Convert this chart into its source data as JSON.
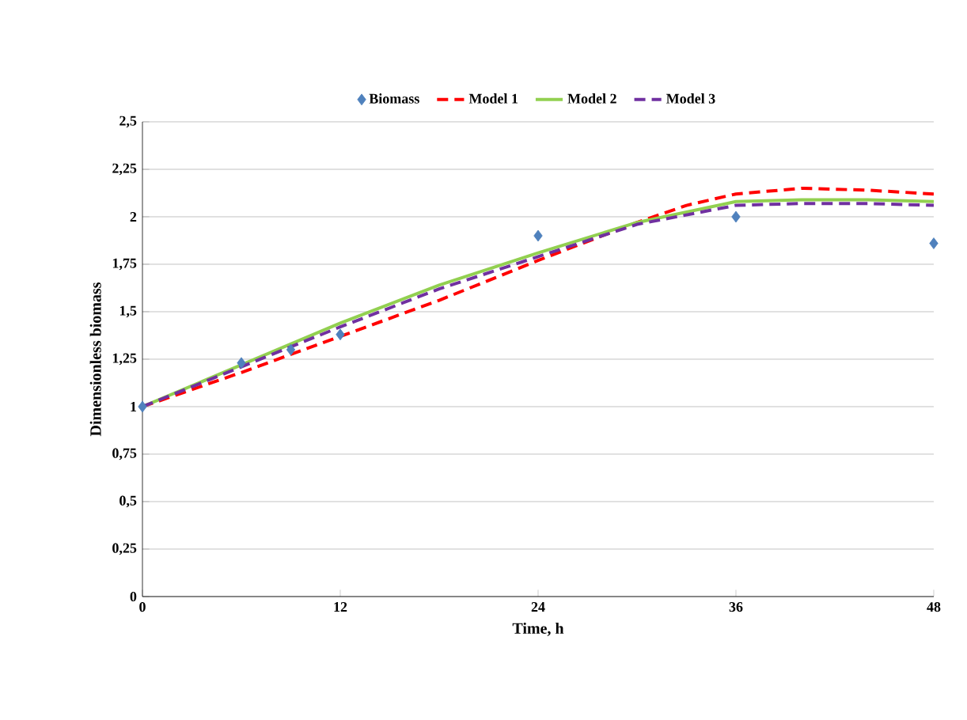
{
  "chart_data": {
    "type": "line",
    "xlabel": "Time, h",
    "ylabel": "Dimensionless biomass",
    "xlim": [
      0,
      48
    ],
    "xticks": [
      0,
      12,
      24,
      36,
      48
    ],
    "ylim": [
      0,
      2.5
    ],
    "yticks": [
      {
        "value": 0,
        "label": "0"
      },
      {
        "value": 0.25,
        "label": "0,25"
      },
      {
        "value": 0.5,
        "label": "0,5"
      },
      {
        "value": 0.75,
        "label": "0,75"
      },
      {
        "value": 1,
        "label": "1"
      },
      {
        "value": 1.25,
        "label": "1,25"
      },
      {
        "value": 1.5,
        "label": "1,5"
      },
      {
        "value": 1.75,
        "label": "1,75"
      },
      {
        "value": 2,
        "label": "2"
      },
      {
        "value": 2.25,
        "label": "2,25"
      },
      {
        "value": 2.5,
        "label": "2,5"
      }
    ],
    "grid": "y",
    "legend": "top",
    "series": [
      {
        "name": "Biomass",
        "type": "scatter",
        "marker": "diamond",
        "color": "#4f81bd",
        "x": [
          0,
          6,
          9,
          12,
          24,
          36,
          48
        ],
        "values": [
          1,
          1.23,
          1.3,
          1.38,
          1.9,
          2.0,
          1.86
        ]
      },
      {
        "name": "Model 1",
        "color": "#ff0000",
        "line_style": "dashed",
        "x": [
          0,
          6,
          12,
          18,
          24,
          30,
          33,
          36,
          40,
          44,
          48
        ],
        "values": [
          1,
          1.18,
          1.37,
          1.56,
          1.77,
          1.97,
          2.06,
          2.12,
          2.15,
          2.14,
          2.12
        ]
      },
      {
        "name": "Model 2",
        "color": "#92d050",
        "line_style": "solid",
        "x": [
          0,
          6,
          12,
          18,
          24,
          30,
          36,
          40,
          44,
          48
        ],
        "values": [
          1,
          1.22,
          1.44,
          1.64,
          1.81,
          1.97,
          2.08,
          2.09,
          2.09,
          2.08
        ]
      },
      {
        "name": "Model 3",
        "color": "#7030a0",
        "line_style": "dashed",
        "x": [
          0,
          6,
          12,
          18,
          24,
          30,
          36,
          40,
          44,
          48
        ],
        "values": [
          1,
          1.21,
          1.42,
          1.62,
          1.79,
          1.96,
          2.06,
          2.07,
          2.07,
          2.06
        ]
      }
    ]
  }
}
